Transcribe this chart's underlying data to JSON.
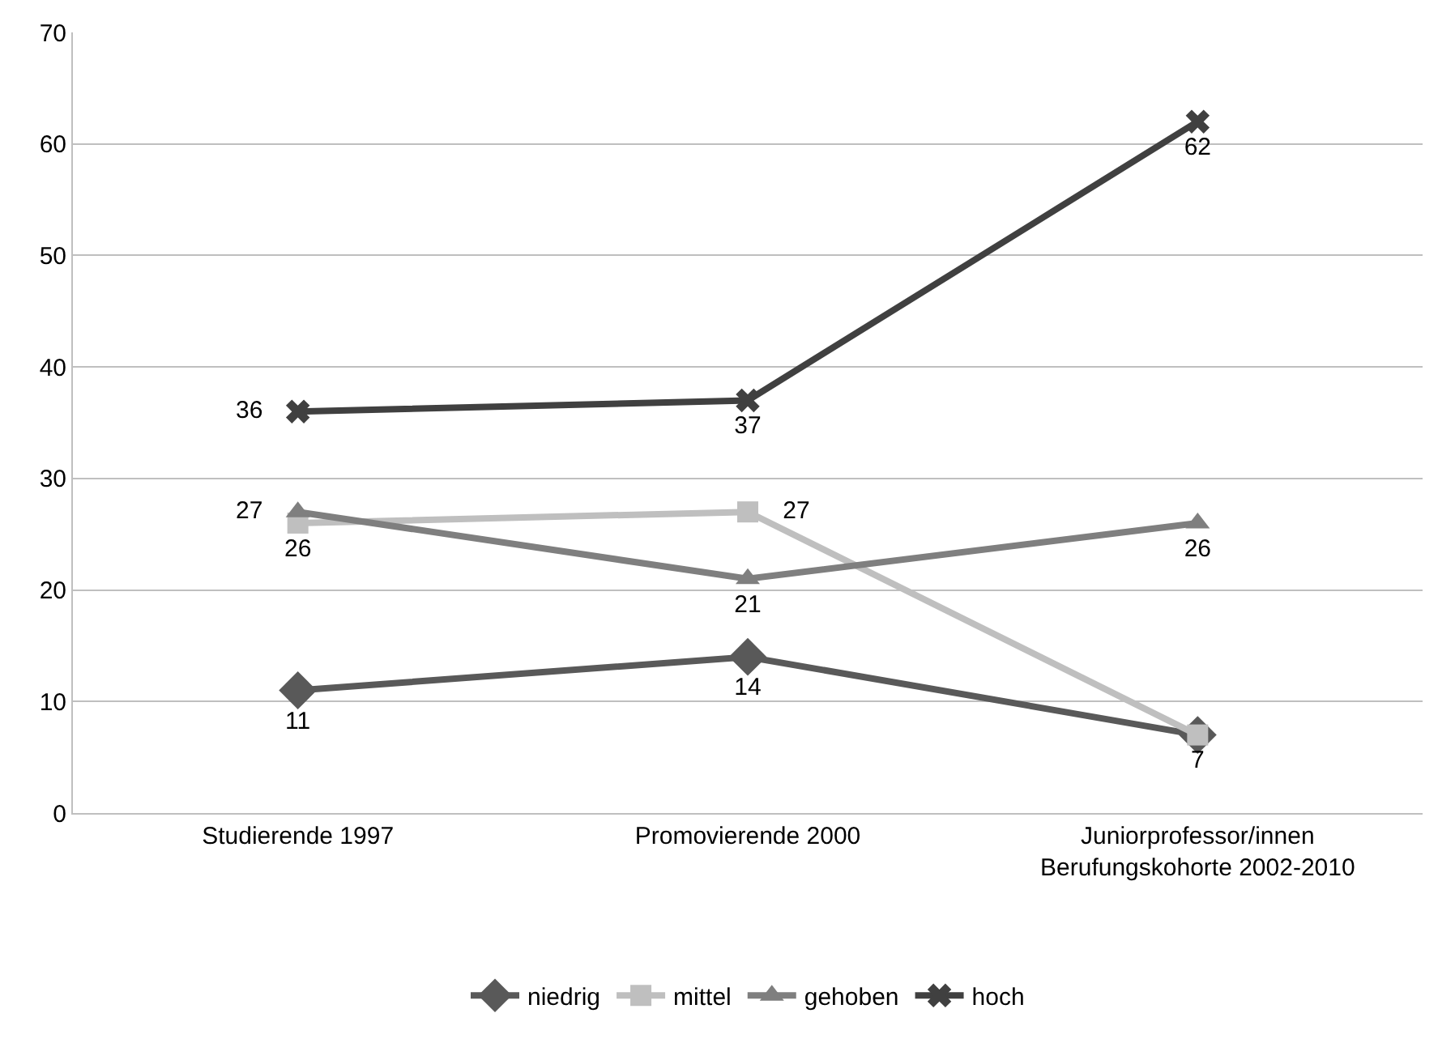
{
  "chart_data": {
    "type": "line",
    "categories": [
      "Studierende 1997",
      "Promovierende 2000",
      "Juniorprofessor/innen\nBerufungskohorte 2002-2010"
    ],
    "series": [
      {
        "name": "niedrig",
        "color": "#595959",
        "marker": "diamond",
        "values": [
          11,
          14,
          7
        ],
        "value_labels": [
          "11",
          "14",
          null
        ]
      },
      {
        "name": "mittel",
        "color": "#bfbfbf",
        "marker": "square",
        "values": [
          26,
          27,
          7
        ],
        "value_labels": [
          "26",
          "27",
          "7"
        ]
      },
      {
        "name": "gehoben",
        "color": "#7f7f7f",
        "marker": "triangle",
        "values": [
          27,
          21,
          26
        ],
        "value_labels": [
          "27",
          "21",
          "26"
        ]
      },
      {
        "name": "hoch",
        "color": "#404040",
        "marker": "cross",
        "values": [
          36,
          37,
          62
        ],
        "value_labels": [
          "36",
          "37",
          "62"
        ]
      }
    ],
    "ylim": [
      0,
      70
    ],
    "yticks": [
      0,
      10,
      20,
      30,
      40,
      50,
      60,
      70
    ],
    "grid": "y",
    "legend": "bottom",
    "line_style": "solid"
  }
}
